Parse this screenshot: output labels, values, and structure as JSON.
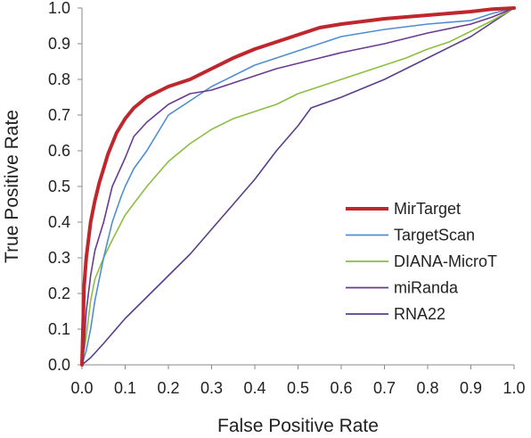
{
  "chart_data": {
    "type": "line",
    "xlabel": "False Positive Rate",
    "ylabel": "True Positive Rate",
    "xlim": [
      0.0,
      1.0
    ],
    "ylim": [
      0.0,
      1.0
    ],
    "x_ticks": [
      "0.0",
      "0.1",
      "0.2",
      "0.3",
      "0.4",
      "0.5",
      "0.6",
      "0.7",
      "0.8",
      "0.9",
      "1.0"
    ],
    "y_ticks": [
      "0.0",
      "0.1",
      "0.2",
      "0.3",
      "0.4",
      "0.5",
      "0.6",
      "0.7",
      "0.8",
      "0.9",
      "1.0"
    ],
    "grid": false,
    "legend_position": "bottom-right",
    "series": [
      {
        "name": "MirTarget",
        "color": "#c0272d",
        "points": [
          [
            0,
            0
          ],
          [
            0.005,
            0.22
          ],
          [
            0.01,
            0.3
          ],
          [
            0.02,
            0.4
          ],
          [
            0.03,
            0.46
          ],
          [
            0.04,
            0.51
          ],
          [
            0.05,
            0.55
          ],
          [
            0.06,
            0.59
          ],
          [
            0.08,
            0.65
          ],
          [
            0.1,
            0.69
          ],
          [
            0.12,
            0.72
          ],
          [
            0.15,
            0.75
          ],
          [
            0.2,
            0.78
          ],
          [
            0.25,
            0.8
          ],
          [
            0.3,
            0.83
          ],
          [
            0.35,
            0.86
          ],
          [
            0.4,
            0.885
          ],
          [
            0.45,
            0.905
          ],
          [
            0.5,
            0.925
          ],
          [
            0.55,
            0.945
          ],
          [
            0.6,
            0.955
          ],
          [
            0.7,
            0.97
          ],
          [
            0.8,
            0.98
          ],
          [
            0.9,
            0.99
          ],
          [
            0.95,
            0.997
          ],
          [
            1.0,
            1.0
          ]
        ]
      },
      {
        "name": "TargetScan",
        "color": "#4f8fd1",
        "points": [
          [
            0,
            0
          ],
          [
            0.01,
            0.04
          ],
          [
            0.02,
            0.1
          ],
          [
            0.03,
            0.18
          ],
          [
            0.05,
            0.3
          ],
          [
            0.07,
            0.4
          ],
          [
            0.09,
            0.47
          ],
          [
            0.1,
            0.5
          ],
          [
            0.12,
            0.55
          ],
          [
            0.15,
            0.6
          ],
          [
            0.18,
            0.66
          ],
          [
            0.2,
            0.7
          ],
          [
            0.25,
            0.74
          ],
          [
            0.3,
            0.78
          ],
          [
            0.35,
            0.81
          ],
          [
            0.4,
            0.84
          ],
          [
            0.45,
            0.86
          ],
          [
            0.5,
            0.88
          ],
          [
            0.55,
            0.9
          ],
          [
            0.6,
            0.92
          ],
          [
            0.7,
            0.94
          ],
          [
            0.8,
            0.955
          ],
          [
            0.9,
            0.965
          ],
          [
            0.95,
            0.985
          ],
          [
            1.0,
            1.0
          ]
        ]
      },
      {
        "name": "DIANA-MicroT",
        "color": "#8cbe3f",
        "points": [
          [
            0,
            0
          ],
          [
            0.01,
            0.08
          ],
          [
            0.02,
            0.18
          ],
          [
            0.03,
            0.24
          ],
          [
            0.05,
            0.3
          ],
          [
            0.07,
            0.35
          ],
          [
            0.1,
            0.42
          ],
          [
            0.15,
            0.5
          ],
          [
            0.2,
            0.57
          ],
          [
            0.25,
            0.62
          ],
          [
            0.3,
            0.66
          ],
          [
            0.35,
            0.69
          ],
          [
            0.4,
            0.71
          ],
          [
            0.45,
            0.73
          ],
          [
            0.5,
            0.76
          ],
          [
            0.55,
            0.78
          ],
          [
            0.6,
            0.8
          ],
          [
            0.65,
            0.82
          ],
          [
            0.7,
            0.84
          ],
          [
            0.75,
            0.86
          ],
          [
            0.8,
            0.885
          ],
          [
            0.85,
            0.905
          ],
          [
            0.9,
            0.935
          ],
          [
            0.95,
            0.965
          ],
          [
            1.0,
            1.0
          ]
        ]
      },
      {
        "name": "miRanda",
        "color": "#6a3a92",
        "points": [
          [
            0,
            0
          ],
          [
            0.005,
            0.05
          ],
          [
            0.01,
            0.15
          ],
          [
            0.02,
            0.25
          ],
          [
            0.03,
            0.32
          ],
          [
            0.05,
            0.4
          ],
          [
            0.07,
            0.5
          ],
          [
            0.1,
            0.58
          ],
          [
            0.12,
            0.64
          ],
          [
            0.15,
            0.68
          ],
          [
            0.2,
            0.73
          ],
          [
            0.25,
            0.76
          ],
          [
            0.3,
            0.77
          ],
          [
            0.35,
            0.79
          ],
          [
            0.4,
            0.81
          ],
          [
            0.45,
            0.83
          ],
          [
            0.5,
            0.845
          ],
          [
            0.55,
            0.86
          ],
          [
            0.6,
            0.875
          ],
          [
            0.7,
            0.9
          ],
          [
            0.8,
            0.93
          ],
          [
            0.9,
            0.955
          ],
          [
            0.95,
            0.975
          ],
          [
            1.0,
            1.0
          ]
        ]
      },
      {
        "name": "RNA22",
        "color": "#5b3e8a",
        "points": [
          [
            0,
            0
          ],
          [
            0.02,
            0.02
          ],
          [
            0.05,
            0.06
          ],
          [
            0.1,
            0.13
          ],
          [
            0.15,
            0.19
          ],
          [
            0.2,
            0.25
          ],
          [
            0.25,
            0.31
          ],
          [
            0.3,
            0.38
          ],
          [
            0.35,
            0.45
          ],
          [
            0.4,
            0.52
          ],
          [
            0.45,
            0.6
          ],
          [
            0.5,
            0.67
          ],
          [
            0.53,
            0.72
          ],
          [
            0.6,
            0.75
          ],
          [
            0.7,
            0.8
          ],
          [
            0.8,
            0.86
          ],
          [
            0.9,
            0.92
          ],
          [
            0.95,
            0.96
          ],
          [
            1.0,
            1.0
          ]
        ]
      }
    ]
  }
}
